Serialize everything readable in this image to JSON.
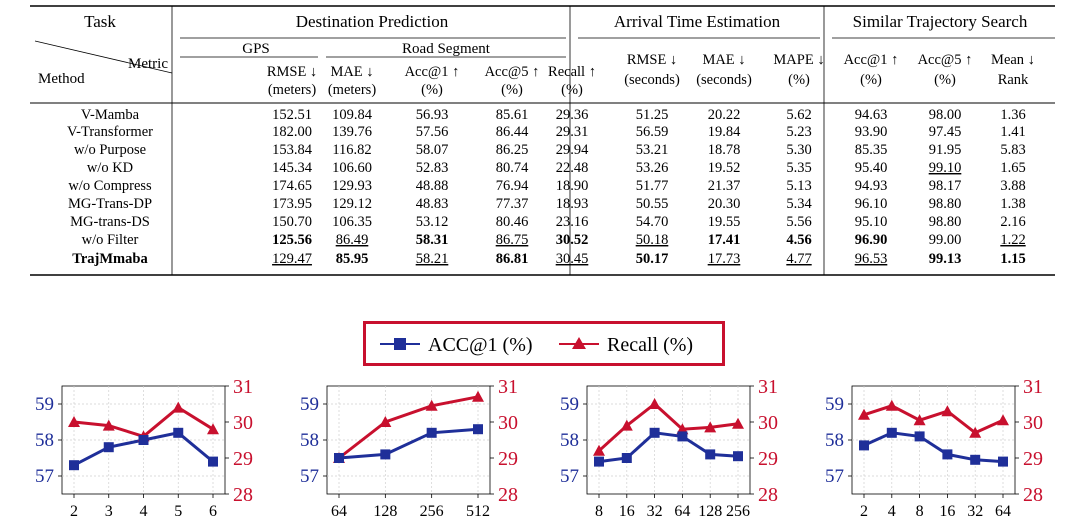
{
  "table": {
    "header": {
      "task": "Task",
      "groups": [
        "Destination Prediction",
        "Arrival Time Estimation",
        "Similar Trajectory Search"
      ],
      "subgroups": [
        "GPS",
        "Road Segment"
      ],
      "metric_label": "Metric",
      "method_label": "Method",
      "columns": [
        {
          "l1": "RMSE ↓",
          "l2": "(meters)"
        },
        {
          "l1": "MAE ↓",
          "l2": "(meters)"
        },
        {
          "l1": "Acc@1 ↑",
          "l2": "(%)"
        },
        {
          "l1": "Acc@5 ↑",
          "l2": "(%)"
        },
        {
          "l1": "Recall ↑",
          "l2": "(%)"
        },
        {
          "l1": "RMSE ↓",
          "l2": "(seconds)"
        },
        {
          "l1": "MAE ↓",
          "l2": "(seconds)"
        },
        {
          "l1": "MAPE ↓",
          "l2": "(%)"
        },
        {
          "l1": "Acc@1 ↑",
          "l2": "(%)"
        },
        {
          "l1": "Acc@5 ↑",
          "l2": "(%)"
        },
        {
          "l1": "Mean ↓",
          "l2": "Rank"
        }
      ]
    },
    "rows": [
      {
        "method": "V-Mamba",
        "values": [
          "152.51",
          "109.84",
          "56.93",
          "85.61",
          "29.36",
          "51.25",
          "20.22",
          "5.62",
          "94.63",
          "98.00",
          "1.36"
        ],
        "bold": [],
        "underline": []
      },
      {
        "method": "V-Transformer",
        "values": [
          "182.00",
          "139.76",
          "57.56",
          "86.44",
          "29.31",
          "56.59",
          "19.84",
          "5.23",
          "93.90",
          "97.45",
          "1.41"
        ],
        "bold": [],
        "underline": []
      },
      {
        "method": "w/o Purpose",
        "values": [
          "153.84",
          "116.82",
          "58.07",
          "86.25",
          "29.94",
          "53.21",
          "18.78",
          "5.30",
          "85.35",
          "91.95",
          "5.83"
        ],
        "bold": [],
        "underline": []
      },
      {
        "method": "w/o KD",
        "values": [
          "145.34",
          "106.60",
          "52.83",
          "80.74",
          "22.48",
          "53.26",
          "19.52",
          "5.35",
          "95.40",
          "99.10",
          "1.65"
        ],
        "bold": [],
        "underline": [
          9
        ]
      },
      {
        "method": "w/o Compress",
        "values": [
          "174.65",
          "129.93",
          "48.88",
          "76.94",
          "18.90",
          "51.77",
          "21.37",
          "5.13",
          "94.93",
          "98.17",
          "3.88"
        ],
        "bold": [],
        "underline": []
      },
      {
        "method": "MG-Trans-DP",
        "values": [
          "173.95",
          "129.12",
          "48.83",
          "77.37",
          "18.93",
          "50.55",
          "20.30",
          "5.34",
          "96.10",
          "98.80",
          "1.38"
        ],
        "bold": [],
        "underline": []
      },
      {
        "method": "MG-trans-DS",
        "values": [
          "150.70",
          "106.35",
          "53.12",
          "80.46",
          "23.16",
          "54.70",
          "19.55",
          "5.56",
          "95.10",
          "98.80",
          "2.16"
        ],
        "bold": [],
        "underline": []
      },
      {
        "method": "w/o Filter",
        "values": [
          "125.56",
          "86.49",
          "58.31",
          "86.75",
          "30.52",
          "50.18",
          "17.41",
          "4.56",
          "96.90",
          "99.00",
          "1.22"
        ],
        "bold": [
          0,
          2,
          4,
          6,
          7,
          8
        ],
        "underline": [
          1,
          3,
          5,
          10
        ]
      },
      {
        "method": "TrajMmaba",
        "values": [
          "129.47",
          "85.95",
          "58.21",
          "86.81",
          "30.45",
          "50.17",
          "17.73",
          "4.77",
          "96.53",
          "99.13",
          "1.15"
        ],
        "bold": [
          1,
          3,
          5,
          9,
          10
        ],
        "underline": [
          0,
          2,
          4,
          6,
          7,
          8
        ],
        "method_bold": true
      }
    ]
  },
  "legend": {
    "series1": "ACC@1 (%)",
    "series2": "Recall (%)"
  },
  "colors": {
    "acc": "#1f2f99",
    "recall": "#c8102e"
  },
  "chart_data": [
    {
      "type": "line",
      "categories": [
        "2",
        "3",
        "4",
        "5",
        "6"
      ],
      "series": [
        {
          "name": "ACC@1 (%)",
          "axis": "left",
          "values": [
            57.3,
            57.8,
            58.0,
            58.2,
            57.4
          ]
        },
        {
          "name": "Recall (%)",
          "axis": "right",
          "values": [
            30.0,
            29.9,
            29.6,
            30.4,
            29.8
          ]
        }
      ],
      "left_ticks": [
        "57",
        "58",
        "59"
      ],
      "right_ticks": [
        "28",
        "29",
        "30",
        "31"
      ],
      "ylim_left": [
        56.5,
        59.5
      ],
      "ylim_right": [
        28,
        31
      ]
    },
    {
      "type": "line",
      "categories": [
        "64",
        "128",
        "256",
        "512"
      ],
      "series": [
        {
          "name": "ACC@1 (%)",
          "axis": "left",
          "values": [
            57.5,
            57.6,
            58.2,
            58.3
          ]
        },
        {
          "name": "Recall (%)",
          "axis": "right",
          "values": [
            29.0,
            30.0,
            30.45,
            30.7
          ]
        }
      ],
      "left_ticks": [
        "57",
        "58",
        "59"
      ],
      "right_ticks": [
        "28",
        "29",
        "30",
        "31"
      ],
      "ylim_left": [
        56.5,
        59.5
      ],
      "ylim_right": [
        28,
        31
      ]
    },
    {
      "type": "line",
      "categories": [
        "8",
        "16",
        "32",
        "64",
        "128",
        "256"
      ],
      "series": [
        {
          "name": "ACC@1 (%)",
          "axis": "left",
          "values": [
            57.4,
            57.5,
            58.2,
            58.1,
            57.6,
            57.55
          ]
        },
        {
          "name": "Recall (%)",
          "axis": "right",
          "values": [
            29.2,
            29.9,
            30.5,
            29.8,
            29.85,
            29.95
          ]
        }
      ],
      "left_ticks": [
        "57",
        "58",
        "59"
      ],
      "right_ticks": [
        "28",
        "29",
        "30",
        "31"
      ],
      "ylim_left": [
        56.5,
        59.5
      ],
      "ylim_right": [
        28,
        31
      ]
    },
    {
      "type": "line",
      "categories": [
        "2",
        "4",
        "8",
        "16",
        "32",
        "64"
      ],
      "series": [
        {
          "name": "ACC@1 (%)",
          "axis": "left",
          "values": [
            57.85,
            58.2,
            58.1,
            57.6,
            57.45,
            57.4
          ]
        },
        {
          "name": "Recall (%)",
          "axis": "right",
          "values": [
            30.2,
            30.45,
            30.05,
            30.3,
            29.7,
            30.05
          ]
        }
      ],
      "left_ticks": [
        "57",
        "58",
        "59"
      ],
      "right_ticks": [
        "28",
        "29",
        "30",
        "31"
      ],
      "ylim_left": [
        56.5,
        59.5
      ],
      "ylim_right": [
        28,
        31
      ]
    }
  ]
}
